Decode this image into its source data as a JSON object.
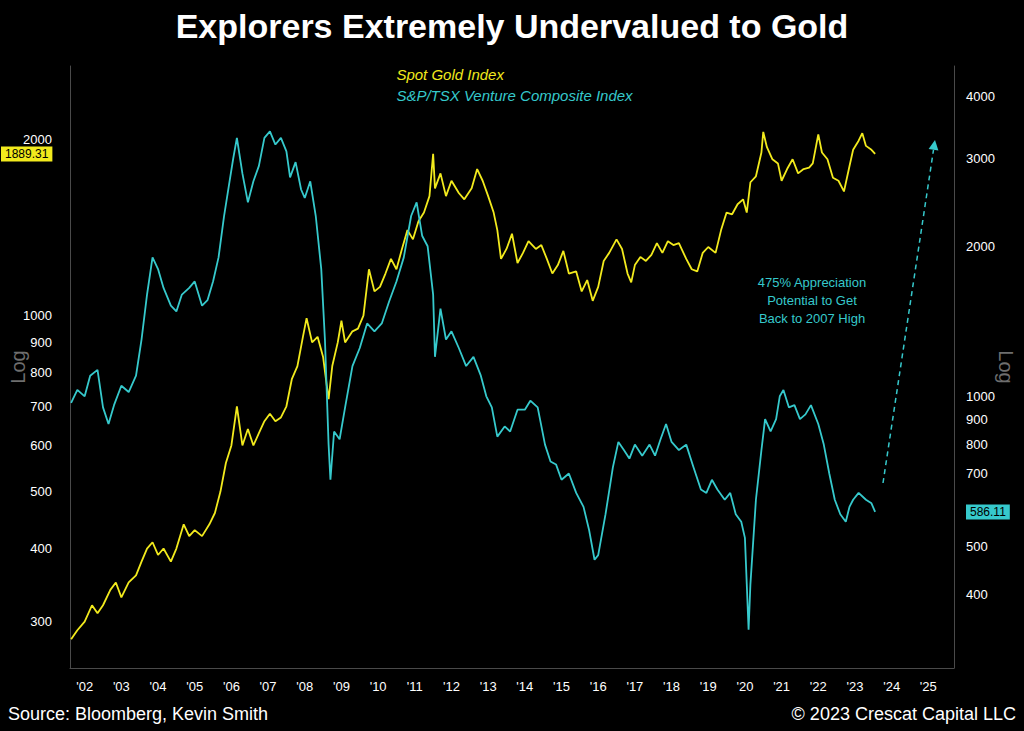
{
  "chart_data": {
    "type": "line",
    "title": "Explorers Extremely Undervalued to Gold",
    "log": "y",
    "grid": false,
    "legend": "top",
    "xlim": [
      2001.6,
      2025.7
    ],
    "xticks": [
      {
        "value": 2002,
        "label": "'02"
      },
      {
        "value": 2003,
        "label": "'03"
      },
      {
        "value": 2004,
        "label": "'04"
      },
      {
        "value": 2005,
        "label": "'05"
      },
      {
        "value": 2006,
        "label": "'06"
      },
      {
        "value": 2007,
        "label": "'07"
      },
      {
        "value": 2008,
        "label": "'08"
      },
      {
        "value": 2009,
        "label": "'09"
      },
      {
        "value": 2010,
        "label": "'10"
      },
      {
        "value": 2011,
        "label": "'11"
      },
      {
        "value": 2012,
        "label": "'12"
      },
      {
        "value": 2013,
        "label": "'13"
      },
      {
        "value": 2014,
        "label": "'14"
      },
      {
        "value": 2015,
        "label": "'15"
      },
      {
        "value": 2016,
        "label": "'16"
      },
      {
        "value": 2017,
        "label": "'17"
      },
      {
        "value": 2018,
        "label": "'18"
      },
      {
        "value": 2019,
        "label": "'19"
      },
      {
        "value": 2020,
        "label": "'20"
      },
      {
        "value": 2021,
        "label": "'21"
      },
      {
        "value": 2022,
        "label": "'22"
      },
      {
        "value": 2023,
        "label": "'23"
      },
      {
        "value": 2024,
        "label": "'24"
      },
      {
        "value": 2025,
        "label": "'25"
      }
    ],
    "ylabel": "Log",
    "ylim": [
      250,
      2670
    ],
    "yticks": [
      300,
      400,
      500,
      600,
      700,
      800,
      900,
      1000,
      2000
    ],
    "y2label": "Log",
    "y2lim": [
      285,
      4600
    ],
    "y2ticks": [
      400,
      500,
      700,
      800,
      900,
      1000,
      2000,
      3000,
      4000
    ],
    "annotations": [
      {
        "text": "475% Appreciation\nPotential to Get\nBack to 2007 High"
      }
    ],
    "source": "Source: Bloomberg, Kevin Smith",
    "credit": "© 2023 Crescat Capital LLC",
    "series": [
      {
        "name": "Spot Gold Index",
        "color": "#f2ea1d",
        "last_value": 1889.31,
        "x": [
          2001.63,
          2001.8,
          2002.0,
          2002.2,
          2002.35,
          2002.5,
          2002.7,
          2002.85,
          2003.0,
          2003.2,
          2003.4,
          2003.55,
          2003.7,
          2003.85,
          2004.0,
          2004.15,
          2004.35,
          2004.5,
          2004.7,
          2004.85,
          2005.0,
          2005.2,
          2005.4,
          2005.55,
          2005.7,
          2005.85,
          2006.0,
          2006.15,
          2006.3,
          2006.45,
          2006.6,
          2006.75,
          2006.9,
          2007.05,
          2007.2,
          2007.35,
          2007.5,
          2007.65,
          2007.8,
          2007.95,
          2008.05,
          2008.2,
          2008.35,
          2008.5,
          2008.6,
          2008.65,
          2008.75,
          2008.9,
          2009.0,
          2009.1,
          2009.3,
          2009.45,
          2009.6,
          2009.75,
          2009.9,
          2010.05,
          2010.2,
          2010.35,
          2010.5,
          2010.65,
          2010.8,
          2010.95,
          2011.1,
          2011.25,
          2011.4,
          2011.5,
          2011.55,
          2011.7,
          2011.85,
          2012.0,
          2012.2,
          2012.35,
          2012.55,
          2012.7,
          2012.85,
          2013.0,
          2013.15,
          2013.25,
          2013.35,
          2013.5,
          2013.65,
          2013.8,
          2013.95,
          2014.1,
          2014.3,
          2014.45,
          2014.6,
          2014.75,
          2014.9,
          2015.05,
          2015.2,
          2015.4,
          2015.55,
          2015.7,
          2015.85,
          2016.0,
          2016.15,
          2016.3,
          2016.5,
          2016.65,
          2016.8,
          2016.9,
          2017.0,
          2017.15,
          2017.3,
          2017.45,
          2017.6,
          2017.75,
          2017.9,
          2018.05,
          2018.2,
          2018.4,
          2018.55,
          2018.7,
          2018.85,
          2019.0,
          2019.2,
          2019.35,
          2019.5,
          2019.65,
          2019.8,
          2019.95,
          2020.05,
          2020.15,
          2020.3,
          2020.45,
          2020.5,
          2020.6,
          2020.75,
          2020.9,
          2021.0,
          2021.15,
          2021.3,
          2021.45,
          2021.6,
          2021.75,
          2021.85,
          2022.0,
          2022.1,
          2022.25,
          2022.4,
          2022.55,
          2022.7,
          2022.85,
          2022.95,
          2023.1,
          2023.2,
          2023.3,
          2023.45,
          2023.55
        ],
        "values": [
          280,
          290,
          300,
          320,
          310,
          320,
          340,
          350,
          330,
          350,
          360,
          380,
          400,
          410,
          390,
          400,
          380,
          400,
          440,
          420,
          430,
          420,
          440,
          460,
          500,
          560,
          600,
          700,
          600,
          640,
          600,
          630,
          660,
          680,
          660,
          670,
          700,
          780,
          820,
          920,
          990,
          900,
          920,
          850,
          760,
          720,
          820,
          900,
          980,
          900,
          940,
          950,
          1000,
          1200,
          1100,
          1120,
          1180,
          1250,
          1200,
          1300,
          1400,
          1350,
          1450,
          1500,
          1600,
          1890,
          1650,
          1750,
          1600,
          1700,
          1620,
          1580,
          1650,
          1780,
          1700,
          1600,
          1500,
          1400,
          1250,
          1300,
          1380,
          1230,
          1280,
          1340,
          1300,
          1320,
          1250,
          1180,
          1220,
          1290,
          1180,
          1190,
          1100,
          1150,
          1060,
          1120,
          1240,
          1280,
          1350,
          1300,
          1180,
          1140,
          1220,
          1260,
          1240,
          1270,
          1330,
          1280,
          1340,
          1320,
          1330,
          1250,
          1200,
          1190,
          1280,
          1310,
          1280,
          1400,
          1500,
          1490,
          1550,
          1580,
          1500,
          1690,
          1730,
          1900,
          2060,
          1940,
          1850,
          1820,
          1700,
          1780,
          1850,
          1750,
          1780,
          1790,
          1820,
          2040,
          1900,
          1850,
          1720,
          1700,
          1630,
          1800,
          1920,
          1990,
          2050,
          1950,
          1920,
          1889.31
        ]
      },
      {
        "name": "S&P/TSX Venture Composite Index",
        "color": "#36c9cc",
        "axis": "y2",
        "last_value": 586.11,
        "x": [
          2001.63,
          2001.8,
          2002.0,
          2002.15,
          2002.35,
          2002.5,
          2002.65,
          2002.8,
          2003.0,
          2003.2,
          2003.4,
          2003.55,
          2003.7,
          2003.85,
          2004.0,
          2004.15,
          2004.35,
          2004.5,
          2004.65,
          2004.85,
          2005.0,
          2005.2,
          2005.35,
          2005.5,
          2005.65,
          2005.8,
          2005.95,
          2006.05,
          2006.15,
          2006.3,
          2006.45,
          2006.6,
          2006.75,
          2006.9,
          2007.05,
          2007.2,
          2007.35,
          2007.5,
          2007.6,
          2007.75,
          2007.9,
          2008.0,
          2008.15,
          2008.3,
          2008.45,
          2008.55,
          2008.65,
          2008.7,
          2008.8,
          2008.95,
          2009.1,
          2009.3,
          2009.5,
          2009.7,
          2009.9,
          2010.1,
          2010.3,
          2010.5,
          2010.7,
          2010.9,
          2011.05,
          2011.2,
          2011.35,
          2011.5,
          2011.55,
          2011.7,
          2011.85,
          2012.0,
          2012.2,
          2012.4,
          2012.6,
          2012.8,
          2012.95,
          2013.1,
          2013.25,
          2013.45,
          2013.6,
          2013.8,
          2014.0,
          2014.15,
          2014.35,
          2014.55,
          2014.7,
          2014.85,
          2015.0,
          2015.2,
          2015.4,
          2015.6,
          2015.75,
          2015.9,
          2016.0,
          2016.2,
          2016.4,
          2016.55,
          2016.7,
          2016.85,
          2017.0,
          2017.2,
          2017.4,
          2017.55,
          2017.7,
          2017.85,
          2018.0,
          2018.2,
          2018.4,
          2018.6,
          2018.8,
          2018.95,
          2019.1,
          2019.25,
          2019.45,
          2019.6,
          2019.75,
          2019.9,
          2020.0,
          2020.05,
          2020.1,
          2020.15,
          2020.3,
          2020.45,
          2020.55,
          2020.7,
          2020.85,
          2020.95,
          2021.05,
          2021.2,
          2021.35,
          2021.5,
          2021.65,
          2021.8,
          2022.0,
          2022.15,
          2022.3,
          2022.45,
          2022.6,
          2022.75,
          2022.85,
          2022.95,
          2023.1,
          2023.3,
          2023.45,
          2023.55
        ],
        "values": [
          970,
          1030,
          1000,
          1100,
          1130,
          950,
          880,
          960,
          1050,
          1020,
          1100,
          1300,
          1600,
          1900,
          1800,
          1650,
          1520,
          1480,
          1600,
          1650,
          1700,
          1520,
          1560,
          1700,
          1900,
          2300,
          2700,
          3000,
          3300,
          2800,
          2450,
          2700,
          2900,
          3300,
          3400,
          3200,
          3300,
          3100,
          2750,
          2950,
          2600,
          2500,
          2700,
          2300,
          1800,
          1300,
          800,
          680,
          850,
          820,
          950,
          1150,
          1250,
          1400,
          1350,
          1400,
          1550,
          1700,
          1900,
          2300,
          2450,
          2100,
          2000,
          1600,
          1200,
          1500,
          1300,
          1350,
          1250,
          1150,
          1200,
          1100,
          1000,
          950,
          830,
          870,
          850,
          940,
          940,
          980,
          950,
          800,
          740,
          730,
          680,
          700,
          640,
          600,
          540,
          470,
          480,
          580,
          720,
          810,
          780,
          750,
          800,
          760,
          800,
          760,
          820,
          880,
          810,
          780,
          800,
          720,
          650,
          640,
          680,
          650,
          620,
          640,
          580,
          560,
          520,
          420,
          340,
          420,
          620,
          780,
          900,
          850,
          900,
          1000,
          1030,
          950,
          960,
          900,
          920,
          960,
          880,
          800,
          700,
          620,
          580,
          560,
          600,
          620,
          640,
          620,
          610,
          586.11
        ]
      }
    ]
  }
}
